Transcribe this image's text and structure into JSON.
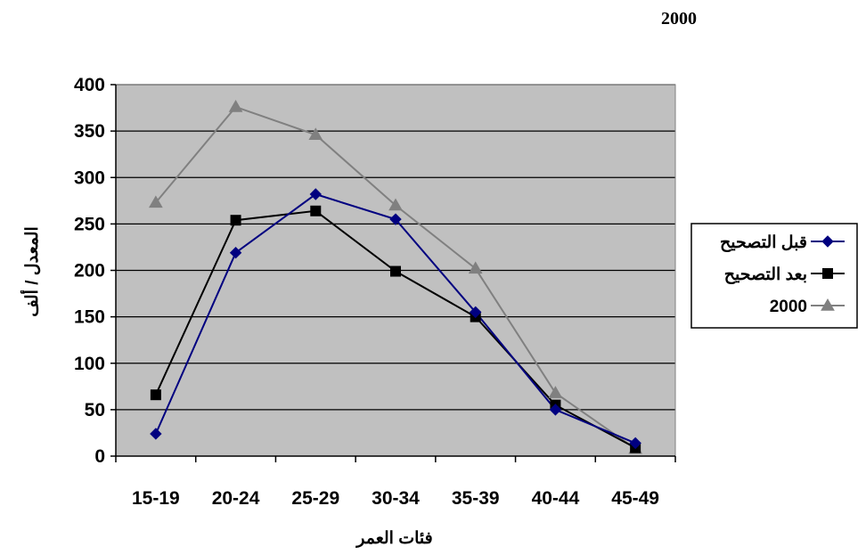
{
  "header": {
    "title": "2000"
  },
  "chart_data": {
    "type": "line",
    "categories": [
      "15-19",
      "20-24",
      "25-29",
      "30-34",
      "35-39",
      "40-44",
      "45-49"
    ],
    "xlabel": "فئات العمر",
    "ylabel": "المعدل / ألف",
    "ylim": [
      0,
      400
    ],
    "yticks": [
      0,
      50,
      100,
      150,
      200,
      250,
      300,
      350,
      400
    ],
    "grid": true,
    "legend_position": "right",
    "series": [
      {
        "name": "قبل التصحيح",
        "color": "#000080",
        "marker": "diamond",
        "values": [
          24,
          219,
          282,
          255,
          155,
          50,
          14
        ]
      },
      {
        "name": "بعد التصحيح",
        "color": "#000000",
        "marker": "square",
        "values": [
          66,
          254,
          264,
          199,
          150,
          55,
          9
        ]
      },
      {
        "name": "2000",
        "color": "#808080",
        "marker": "triangle",
        "values": [
          273,
          376,
          346,
          270,
          202,
          68,
          8
        ]
      }
    ],
    "colors": {
      "plot_background": "#c0c0c0",
      "gridline": "#000000"
    }
  }
}
